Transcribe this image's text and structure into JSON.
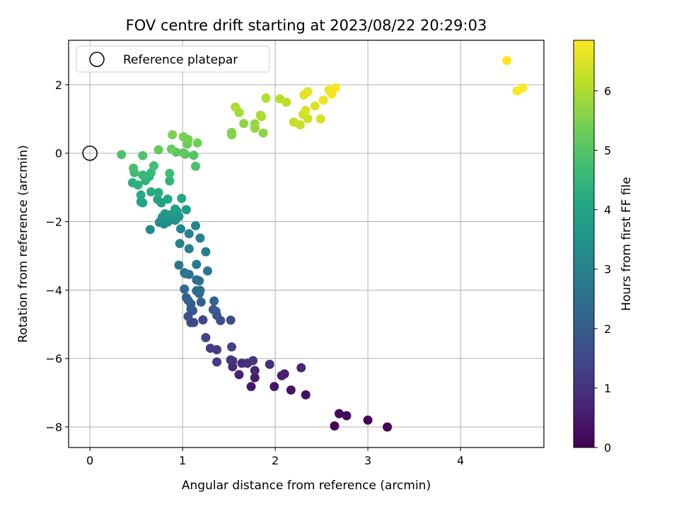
{
  "chart_data": {
    "type": "scatter",
    "title": "FOV centre drift starting at 2023/08/22 20:29:03",
    "xlabel": "Angular distance from reference (arcmin)",
    "ylabel": "Rotation from reference (arcmin)",
    "xlim": [
      -0.23,
      4.9
    ],
    "ylim": [
      -8.6,
      3.3
    ],
    "xticks": [
      0,
      1,
      2,
      3,
      4
    ],
    "yticks": [
      -8,
      -6,
      -4,
      -2,
      0,
      2
    ],
    "grid": true,
    "legend": {
      "position": "top-left",
      "entries": [
        "Reference platepar"
      ]
    },
    "colorbar": {
      "label": "Hours from first FF file",
      "colormap": "viridis",
      "range": [
        0,
        6.85
      ],
      "ticks": [
        0,
        1,
        2,
        3,
        4,
        5,
        6
      ]
    },
    "reference_point": {
      "x": 0,
      "y": 0
    },
    "columns": [
      "x",
      "y",
      "hours"
    ],
    "points": [
      [
        3.21,
        -8.0,
        0.0
      ],
      [
        2.64,
        -7.97,
        0.05
      ],
      [
        3.0,
        -7.8,
        0.1
      ],
      [
        2.77,
        -7.67,
        0.15
      ],
      [
        2.69,
        -7.61,
        0.2
      ],
      [
        2.33,
        -7.06,
        0.3
      ],
      [
        2.17,
        -6.92,
        0.35
      ],
      [
        1.99,
        -6.82,
        0.4
      ],
      [
        1.74,
        -6.82,
        0.45
      ],
      [
        1.78,
        -6.56,
        0.5
      ],
      [
        2.07,
        -6.5,
        0.55
      ],
      [
        2.1,
        -6.45,
        0.6
      ],
      [
        1.61,
        -6.47,
        0.65
      ],
      [
        1.78,
        -6.35,
        0.7
      ],
      [
        2.28,
        -6.27,
        0.75
      ],
      [
        1.54,
        -6.24,
        0.8
      ],
      [
        1.64,
        -6.14,
        0.85
      ],
      [
        1.7,
        -6.14,
        0.9
      ],
      [
        1.94,
        -6.17,
        0.95
      ],
      [
        1.52,
        -6.04,
        1.0
      ],
      [
        1.54,
        -6.07,
        1.05
      ],
      [
        1.76,
        -6.06,
        1.1
      ],
      [
        1.37,
        -6.1,
        1.15
      ],
      [
        1.37,
        -5.74,
        1.2
      ],
      [
        1.3,
        -5.7,
        1.25
      ],
      [
        1.53,
        -5.66,
        1.3
      ],
      [
        1.25,
        -5.39,
        1.4
      ],
      [
        1.22,
        -4.87,
        1.45
      ],
      [
        1.12,
        -4.95,
        1.5
      ],
      [
        1.09,
        -4.95,
        1.55
      ],
      [
        1.52,
        -4.88,
        1.6
      ],
      [
        1.41,
        -4.89,
        1.65
      ],
      [
        1.06,
        -4.77,
        1.7
      ],
      [
        1.37,
        -4.74,
        1.75
      ],
      [
        1.11,
        -4.6,
        1.8
      ],
      [
        1.09,
        -4.55,
        1.85
      ],
      [
        1.36,
        -4.62,
        1.9
      ],
      [
        1.33,
        -4.57,
        1.95
      ],
      [
        1.09,
        -4.4,
        2.0
      ],
      [
        1.2,
        -4.35,
        2.05
      ],
      [
        1.06,
        -4.3,
        2.1
      ],
      [
        1.34,
        -4.32,
        2.15
      ],
      [
        1.04,
        -4.22,
        2.2
      ],
      [
        1.18,
        -4.1,
        2.25
      ],
      [
        1.02,
        -3.97,
        2.3
      ],
      [
        1.15,
        -4.02,
        2.35
      ],
      [
        1.19,
        -4.01,
        2.4
      ],
      [
        1.15,
        -3.7,
        2.45
      ],
      [
        1.18,
        -3.73,
        2.5
      ],
      [
        1.03,
        -3.52,
        2.55
      ],
      [
        1.07,
        -3.54,
        2.6
      ],
      [
        1.02,
        -3.49,
        2.65
      ],
      [
        1.27,
        -3.44,
        2.7
      ],
      [
        0.96,
        -3.27,
        2.75
      ],
      [
        1.15,
        -3.25,
        2.8
      ],
      [
        1.25,
        -2.88,
        2.85
      ],
      [
        1.07,
        -2.79,
        2.9
      ],
      [
        0.97,
        -2.64,
        2.95
      ],
      [
        1.19,
        -2.48,
        3.0
      ],
      [
        1.07,
        -2.35,
        3.05
      ],
      [
        1.14,
        -2.12,
        3.1
      ],
      [
        0.98,
        -2.21,
        3.15
      ],
      [
        0.65,
        -2.23,
        3.2
      ],
      [
        0.8,
        -2.07,
        3.25
      ],
      [
        0.75,
        -2.02,
        3.3
      ],
      [
        0.84,
        -2.01,
        3.35
      ],
      [
        0.92,
        -1.96,
        3.4
      ],
      [
        0.9,
        -1.91,
        3.45
      ],
      [
        0.96,
        -1.85,
        3.5
      ],
      [
        0.78,
        -1.87,
        3.55
      ],
      [
        0.81,
        -1.77,
        3.6
      ],
      [
        0.87,
        -1.8,
        3.65
      ],
      [
        1.04,
        -1.65,
        3.7
      ],
      [
        0.94,
        -1.7,
        3.75
      ],
      [
        0.92,
        -1.63,
        3.8
      ],
      [
        0.57,
        -1.45,
        3.85
      ],
      [
        0.77,
        -1.45,
        3.9
      ],
      [
        0.55,
        -1.42,
        3.95
      ],
      [
        0.73,
        -1.35,
        4.0
      ],
      [
        0.84,
        -1.34,
        4.05
      ],
      [
        0.99,
        -1.32,
        4.1
      ],
      [
        0.55,
        -1.22,
        4.15
      ],
      [
        0.66,
        -1.13,
        4.2
      ],
      [
        0.74,
        -1.15,
        4.25
      ],
      [
        0.46,
        -0.86,
        4.3
      ],
      [
        0.52,
        -0.93,
        4.35
      ],
      [
        0.86,
        -0.81,
        4.4
      ],
      [
        0.6,
        -0.8,
        4.45
      ],
      [
        0.64,
        -0.68,
        4.5
      ],
      [
        0.57,
        -0.64,
        4.55
      ],
      [
        0.66,
        -0.57,
        4.6
      ],
      [
        0.48,
        -0.57,
        4.65
      ],
      [
        0.86,
        -0.59,
        4.7
      ],
      [
        0.69,
        -0.37,
        4.75
      ],
      [
        0.47,
        -0.44,
        4.8
      ],
      [
        1.14,
        -0.38,
        4.85
      ],
      [
        0.34,
        -0.04,
        4.9
      ],
      [
        0.57,
        -0.07,
        4.95
      ],
      [
        1.12,
        -0.06,
        5.0
      ],
      [
        1.03,
        -0.03,
        5.05
      ],
      [
        0.93,
        0.03,
        5.1
      ],
      [
        1.01,
        0.01,
        5.15
      ],
      [
        0.74,
        0.1,
        5.2
      ],
      [
        1.05,
        0.27,
        5.25
      ],
      [
        0.88,
        0.12,
        5.3
      ],
      [
        1.16,
        0.3,
        5.35
      ],
      [
        1.06,
        0.4,
        5.4
      ],
      [
        1.01,
        0.48,
        5.45
      ],
      [
        0.89,
        0.54,
        5.5
      ],
      [
        1.53,
        0.54,
        5.55
      ],
      [
        1.53,
        0.61,
        5.6
      ],
      [
        1.87,
        0.59,
        5.65
      ],
      [
        1.66,
        0.87,
        5.7
      ],
      [
        1.78,
        0.73,
        5.75
      ],
      [
        1.78,
        0.86,
        5.8
      ],
      [
        1.85,
        1.07,
        5.85
      ],
      [
        1.61,
        1.19,
        5.9
      ],
      [
        1.57,
        1.35,
        5.95
      ],
      [
        1.84,
        1.11,
        6.0
      ],
      [
        1.9,
        1.61,
        6.05
      ],
      [
        2.05,
        1.59,
        6.1
      ],
      [
        2.12,
        1.49,
        6.15
      ],
      [
        2.2,
        0.91,
        6.2
      ],
      [
        2.27,
        0.83,
        6.25
      ],
      [
        2.35,
        1.01,
        6.3
      ],
      [
        2.3,
        1.14,
        6.35
      ],
      [
        2.49,
        1.0,
        6.4
      ],
      [
        2.33,
        1.25,
        6.45
      ],
      [
        2.43,
        1.38,
        6.5
      ],
      [
        2.31,
        1.7,
        6.55
      ],
      [
        2.35,
        1.8,
        6.6
      ],
      [
        2.52,
        1.55,
        6.65
      ],
      [
        2.58,
        1.85,
        6.7
      ],
      [
        2.61,
        1.73,
        6.75
      ],
      [
        2.65,
        1.91,
        6.8
      ],
      [
        4.5,
        2.71,
        6.85
      ],
      [
        4.67,
        1.91,
        6.85
      ],
      [
        4.61,
        1.82,
        6.82
      ]
    ]
  }
}
